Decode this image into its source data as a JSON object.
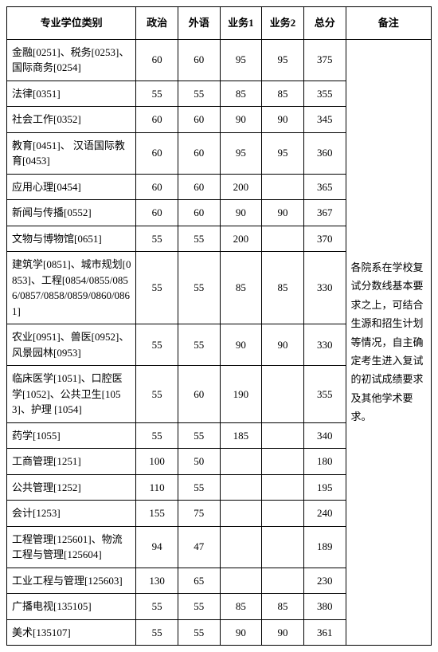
{
  "table": {
    "headers": [
      "专业学位类别",
      "政治",
      "外语",
      "业务1",
      "业务2",
      "总分",
      "备注"
    ],
    "remark": "各院系在学校复试分数线基本要求之上，可结合生源和招生计划等情况，自主确定考生进入复试的初试成绩要求及其他学术要求。",
    "rows": [
      {
        "cat": "金融[0251]、税务[0253]、国际商务[0254]",
        "s": [
          "60",
          "60",
          "95",
          "95",
          "375"
        ]
      },
      {
        "cat": "法律[0351]",
        "s": [
          "55",
          "55",
          "85",
          "85",
          "355"
        ]
      },
      {
        "cat": "社会工作[0352]",
        "s": [
          "60",
          "60",
          "90",
          "90",
          "345"
        ]
      },
      {
        "cat": "教育[0451]、\n汉语国际教育[0453]",
        "s": [
          "60",
          "60",
          "95",
          "95",
          "360"
        ]
      },
      {
        "cat": "应用心理[0454]",
        "s": [
          "60",
          "60",
          "200",
          "",
          "365"
        ]
      },
      {
        "cat": "新闻与传播[0552]",
        "s": [
          "60",
          "60",
          "90",
          "90",
          "367"
        ]
      },
      {
        "cat": "文物与博物馆[0651]",
        "s": [
          "55",
          "55",
          "200",
          "",
          "370"
        ]
      },
      {
        "cat": "建筑学[0851]、城市规划[0853]、工程[0854/0855/0856/0857/0858/0859/0860/0861]",
        "s": [
          "55",
          "55",
          "85",
          "85",
          "330"
        ]
      },
      {
        "cat": "农业[0951]、兽医[0952]、风景园林[0953]",
        "s": [
          "55",
          "55",
          "90",
          "90",
          "330"
        ]
      },
      {
        "cat": "临床医学[1051]、口腔医学[1052]、公共卫生[1053]、护理 [1054]",
        "s": [
          "55",
          "60",
          "190",
          "",
          "355"
        ]
      },
      {
        "cat": "药学[1055]",
        "s": [
          "55",
          "55",
          "185",
          "",
          "340"
        ]
      },
      {
        "cat": "工商管理[1251]",
        "s": [
          "100",
          "50",
          "",
          "",
          "180"
        ]
      },
      {
        "cat": "公共管理[1252]",
        "s": [
          "110",
          "55",
          "",
          "",
          "195"
        ]
      },
      {
        "cat": "会计[1253]",
        "s": [
          "155",
          "75",
          "",
          "",
          "240"
        ]
      },
      {
        "cat": "工程管理[125601]、物流工程与管理[125604]",
        "s": [
          "94",
          "47",
          "",
          "",
          "189"
        ]
      },
      {
        "cat": "工业工程与管理[125603]",
        "s": [
          "130",
          "65",
          "",
          "",
          "230"
        ]
      },
      {
        "cat": "广播电视[135105]",
        "s": [
          "55",
          "55",
          "85",
          "85",
          "380"
        ]
      },
      {
        "cat": "美术[135107]",
        "s": [
          "55",
          "55",
          "90",
          "90",
          "361"
        ]
      }
    ]
  }
}
